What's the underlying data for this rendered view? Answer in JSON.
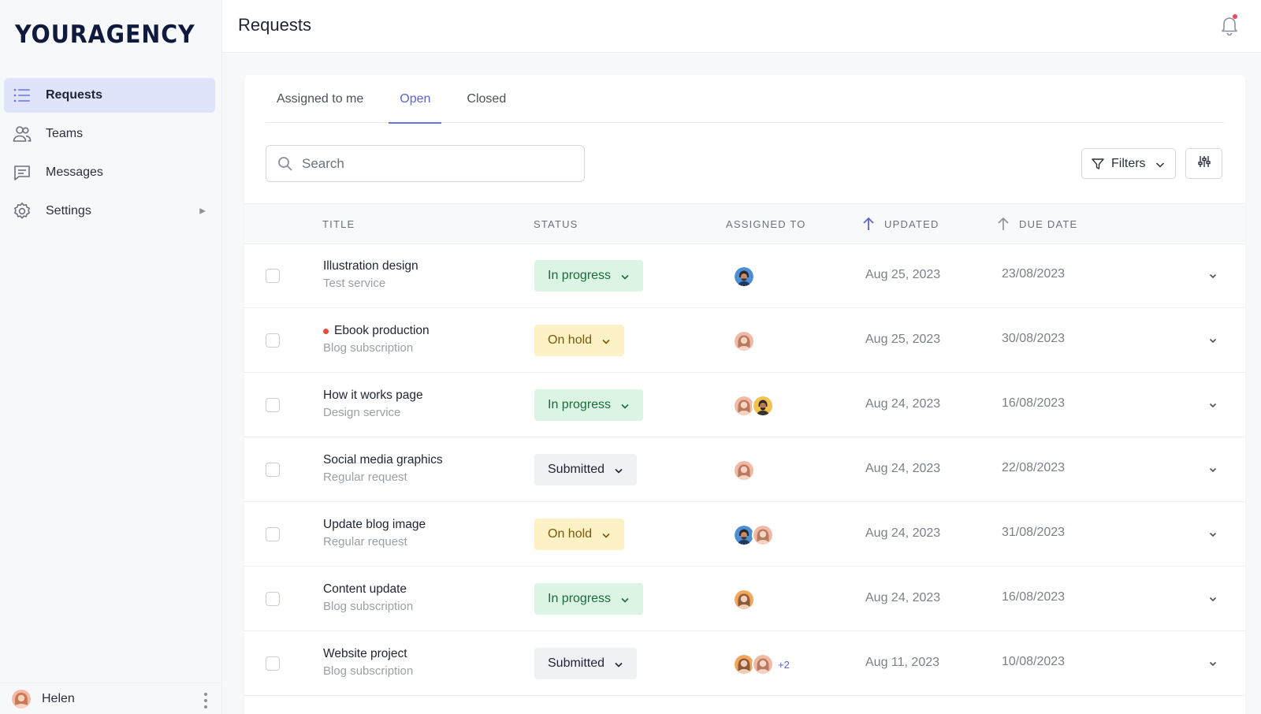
{
  "brand": {
    "logo": "YOURAGENCY"
  },
  "sidebar": {
    "items": [
      {
        "label": "Requests",
        "icon": "list-icon",
        "active": true
      },
      {
        "label": "Teams",
        "icon": "users-icon"
      },
      {
        "label": "Messages",
        "icon": "message-icon"
      },
      {
        "label": "Settings",
        "icon": "gear-icon",
        "has_submenu": true
      }
    ],
    "user": {
      "name": "Helen"
    }
  },
  "header": {
    "title": "Requests"
  },
  "tabs": [
    {
      "label": "Assigned to me"
    },
    {
      "label": "Open",
      "active": true
    },
    {
      "label": "Closed"
    }
  ],
  "search": {
    "placeholder": "Search",
    "value": ""
  },
  "toolbar": {
    "filters_label": "Filters"
  },
  "table": {
    "columns": {
      "title": "Title",
      "status": "Status",
      "assigned": "Assigned to",
      "updated": "Updated",
      "due": "Due date"
    },
    "rows": [
      {
        "title": "Illustration design",
        "subtitle": "Test service",
        "status": "In progress",
        "status_kind": "in-progress",
        "assignees": [
          "man-dark"
        ],
        "more": "",
        "updated": "Aug 25, 2023",
        "due": "23/08/2023",
        "unread": false
      },
      {
        "title": "Ebook production",
        "subtitle": "Blog subscription",
        "status": "On hold",
        "status_kind": "on-hold",
        "assignees": [
          "woman-pink"
        ],
        "more": "",
        "updated": "Aug 25, 2023",
        "due": "30/08/2023",
        "unread": true
      },
      {
        "title": "How it works page",
        "subtitle": "Design service",
        "status": "In progress",
        "status_kind": "in-progress",
        "assignees": [
          "woman-pink",
          "man-yellow"
        ],
        "more": "",
        "updated": "Aug 24, 2023",
        "due": "16/08/2023",
        "unread": false
      },
      {
        "title": "Social media graphics",
        "subtitle": "Regular request",
        "status": "Submitted",
        "status_kind": "submitted",
        "assignees": [
          "woman-pink"
        ],
        "more": "",
        "updated": "Aug 24, 2023",
        "due": "22/08/2023",
        "unread": false
      },
      {
        "title": "Update blog image",
        "subtitle": "Regular request",
        "status": "On hold",
        "status_kind": "on-hold",
        "assignees": [
          "man-dark",
          "woman-pink"
        ],
        "more": "",
        "updated": "Aug 24, 2023",
        "due": "31/08/2023",
        "unread": false
      },
      {
        "title": "Content update",
        "subtitle": "Blog subscription",
        "status": "In progress",
        "status_kind": "in-progress",
        "assignees": [
          "woman-orange"
        ],
        "more": "",
        "updated": "Aug 24, 2023",
        "due": "16/08/2023",
        "unread": false
      },
      {
        "title": "Website project",
        "subtitle": "Blog subscription",
        "status": "Submitted",
        "status_kind": "submitted",
        "assignees": [
          "woman-orange",
          "woman-pink"
        ],
        "more": "+2",
        "updated": "Aug 11, 2023",
        "due": "10/08/2023",
        "unread": false
      }
    ]
  },
  "colors": {
    "accent": "#5a63d8",
    "in_progress_bg": "#dcf4e4",
    "on_hold_bg": "#fdf1c6",
    "submitted_bg": "#f0f1f4",
    "notification_dot": "#e84a5f"
  }
}
